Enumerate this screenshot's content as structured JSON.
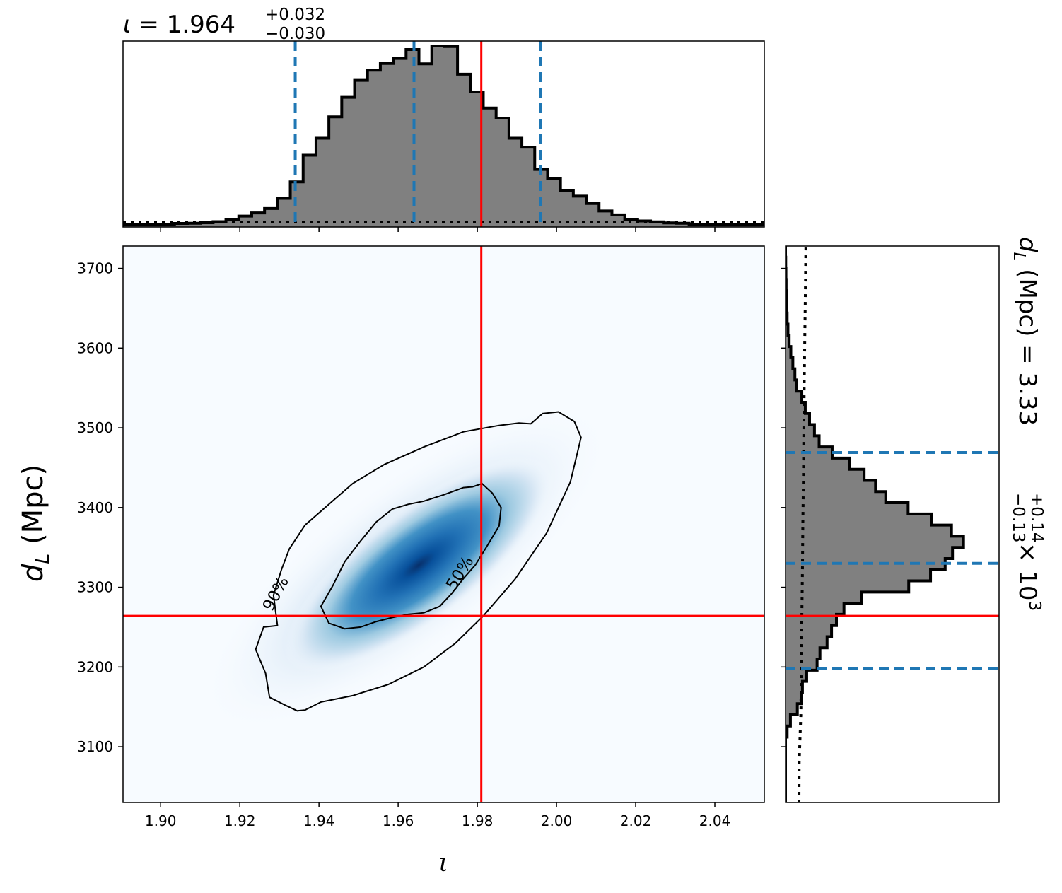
{
  "chart_data": {
    "type": "heatmap",
    "x_param": "ι",
    "y_param": "d_L (Mpc)",
    "xlabel": "ι",
    "ylabel_main": "d",
    "ylabel_sub": "L",
    "ylabel_unit": "(Mpc)",
    "xlim": [
      1.8905,
      2.0525
    ],
    "ylim": [
      3030,
      3728
    ],
    "x_ticks": [
      "1.90",
      "1.92",
      "1.94",
      "1.96",
      "1.98",
      "2.00",
      "2.02",
      "2.04"
    ],
    "x_tick_values": [
      1.9,
      1.92,
      1.94,
      1.96,
      1.98,
      2.0,
      2.02,
      2.04
    ],
    "y_ticks": [
      "3100",
      "3200",
      "3300",
      "3400",
      "3500",
      "3600",
      "3700"
    ],
    "y_tick_values": [
      3100,
      3200,
      3300,
      3400,
      3500,
      3600,
      3700
    ],
    "colormap": "Blues",
    "truth": {
      "iota": 1.981,
      "dL": 3264,
      "color": "#ff0000"
    },
    "quantile_color": "#1f77b4",
    "hist_fill": "#808080",
    "density_peak": {
      "iota": 1.967,
      "dL": 3335
    },
    "contours": [
      {
        "label": "50%",
        "label_pos": {
          "iota": 1.9755,
          "dL": 3318
        },
        "label_angle": -58
      },
      {
        "label": "90%",
        "label_pos": {
          "iota": 1.929,
          "dL": 3292
        },
        "label_angle": -62
      }
    ],
    "contour_50": [
      [
        1.9405,
        3276
      ],
      [
        1.9425,
        3255
      ],
      [
        1.9465,
        3248
      ],
      [
        1.9505,
        3250
      ],
      [
        1.9545,
        3257
      ],
      [
        1.9585,
        3262
      ],
      [
        1.9625,
        3266
      ],
      [
        1.9665,
        3268
      ],
      [
        1.9705,
        3276
      ],
      [
        1.9735,
        3292
      ],
      [
        1.9765,
        3311
      ],
      [
        1.9795,
        3328
      ],
      [
        1.9825,
        3352
      ],
      [
        1.9855,
        3377
      ],
      [
        1.986,
        3400
      ],
      [
        1.9838,
        3418
      ],
      [
        1.9812,
        3430
      ],
      [
        1.9788,
        3426
      ],
      [
        1.9765,
        3425
      ],
      [
        1.9715,
        3416
      ],
      [
        1.9665,
        3408
      ],
      [
        1.9625,
        3404
      ],
      [
        1.9585,
        3398
      ],
      [
        1.9545,
        3382
      ],
      [
        1.9505,
        3358
      ],
      [
        1.9465,
        3332
      ],
      [
        1.9435,
        3302
      ],
      [
        1.9405,
        3276
      ]
    ],
    "contour_90": [
      [
        1.9295,
        3252
      ],
      [
        1.926,
        3250
      ],
      [
        1.924,
        3222
      ],
      [
        1.9265,
        3192
      ],
      [
        1.9275,
        3162
      ],
      [
        1.9315,
        3152
      ],
      [
        1.9345,
        3145
      ],
      [
        1.9365,
        3146
      ],
      [
        1.9405,
        3156
      ],
      [
        1.9485,
        3164
      ],
      [
        1.9575,
        3178
      ],
      [
        1.9665,
        3200
      ],
      [
        1.9745,
        3230
      ],
      [
        1.9815,
        3264
      ],
      [
        1.9895,
        3310
      ],
      [
        1.9975,
        3368
      ],
      [
        2.0035,
        3432
      ],
      [
        2.0062,
        3488
      ],
      [
        2.0045,
        3508
      ],
      [
        2.0005,
        3520
      ],
      [
        1.9965,
        3518
      ],
      [
        1.9935,
        3505
      ],
      [
        1.9905,
        3506
      ],
      [
        1.9855,
        3503
      ],
      [
        1.9765,
        3495
      ],
      [
        1.9665,
        3476
      ],
      [
        1.9565,
        3454
      ],
      [
        1.9485,
        3430
      ],
      [
        1.9425,
        3404
      ],
      [
        1.9365,
        3378
      ],
      [
        1.9325,
        3348
      ],
      [
        1.9305,
        3322
      ],
      [
        1.9285,
        3290
      ],
      [
        1.9295,
        3252
      ]
    ],
    "iota_summary": {
      "symbol": "ι",
      "median": "1.964",
      "plus": "+0.032",
      "minus": "−0.030",
      "quantiles": [
        1.934,
        1.964,
        1.996
      ]
    },
    "iota_hist": {
      "bin_width": 0.00325,
      "bin_start": 1.8905,
      "counts": [
        0,
        0,
        0,
        0,
        0.004,
        0.005,
        0.008,
        0.014,
        0.024,
        0.045,
        0.063,
        0.088,
        0.145,
        0.237,
        0.387,
        0.482,
        0.602,
        0.712,
        0.807,
        0.864,
        0.902,
        0.93,
        0.98,
        0.9,
        1.0,
        0.997,
        0.842,
        0.742,
        0.652,
        0.595,
        0.482,
        0.432,
        0.307,
        0.255,
        0.187,
        0.157,
        0.116,
        0.074,
        0.052,
        0.024,
        0.018,
        0.013,
        0.007,
        0.005,
        0,
        0,
        0,
        0,
        0,
        0
      ],
      "prior_level": 0.012
    },
    "dL_summary": {
      "label": "d",
      "sub": "L",
      "unit": "(Mpc) =",
      "median": "3.33",
      "plus": "+0.14",
      "minus": "−0.13",
      "scale": "× 10",
      "scale_exp": "3",
      "quantiles": [
        3198,
        3330,
        3469
      ]
    },
    "dL_hist": {
      "bin_width": 14,
      "bin_start": 3028,
      "counts": [
        0,
        0,
        0,
        0,
        0,
        0,
        0.008,
        0.024,
        0.058,
        0.078,
        0.083,
        0.104,
        0.155,
        0.169,
        0.204,
        0.226,
        0.25,
        0.287,
        0.372,
        0.605,
        0.712,
        0.784,
        0.82,
        0.874,
        0.815,
        0.718,
        0.602,
        0.492,
        0.442,
        0.386,
        0.314,
        0.229,
        0.165,
        0.142,
        0.118,
        0.097,
        0.08,
        0.053,
        0.046,
        0.036,
        0.026,
        0.018,
        0.012,
        0.008,
        0.005,
        0.004,
        0.003,
        0.002,
        0.001,
        0.0
      ],
      "prior_curve": [
        [
          3030,
          0.066
        ],
        [
          3080,
          0.067
        ],
        [
          3140,
          0.075
        ],
        [
          3200,
          0.078
        ],
        [
          3260,
          0.08
        ],
        [
          3320,
          0.083
        ],
        [
          3380,
          0.085
        ],
        [
          3440,
          0.088
        ],
        [
          3500,
          0.09
        ],
        [
          3560,
          0.092
        ],
        [
          3620,
          0.095
        ],
        [
          3680,
          0.098
        ],
        [
          3728,
          0.1
        ]
      ]
    }
  }
}
